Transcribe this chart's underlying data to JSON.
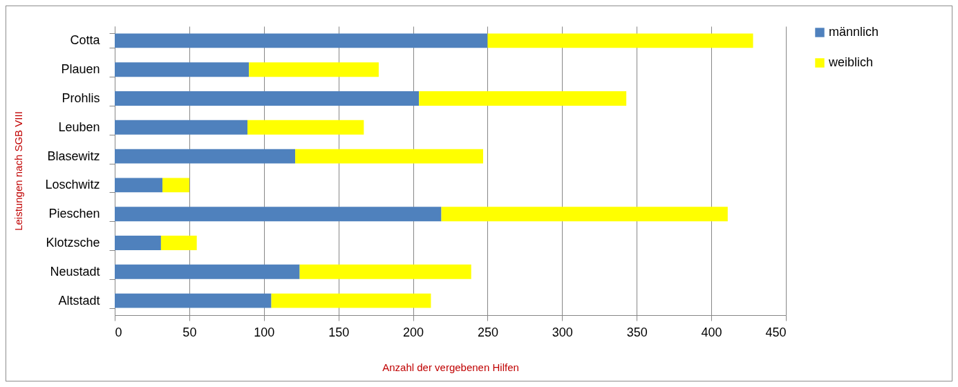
{
  "chart_data": {
    "type": "bar",
    "orientation": "horizontal",
    "stacked": true,
    "xlabel": "Anzahl der vergebenen Hilfen",
    "ylabel": "Leistungen nach SGB VIII",
    "categories": [
      "Cotta",
      "Plauen",
      "Prohlis",
      "Leuben",
      "Blasewitz",
      "Loschwitz",
      "Pieschen",
      "Klotzsche",
      "Neustadt",
      "Altstadt"
    ],
    "series": [
      {
        "name": "männlich",
        "color": "#4f81bd",
        "values": [
          250,
          90,
          204,
          89,
          121,
          32,
          219,
          31,
          124,
          105
        ]
      },
      {
        "name": "weiblich",
        "color": "#ffff00",
        "values": [
          178,
          87,
          139,
          78,
          126,
          18,
          192,
          24,
          115,
          107
        ]
      }
    ],
    "xlim": [
      0,
      450
    ],
    "xticks": [
      0,
      50,
      100,
      150,
      200,
      250,
      300,
      350,
      400,
      450
    ],
    "grid": "x",
    "legend": "right"
  }
}
